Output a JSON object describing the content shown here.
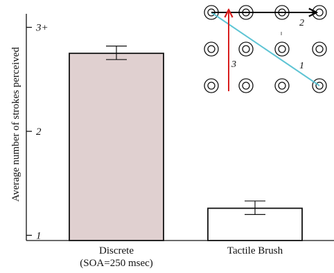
{
  "chart_data": {
    "type": "bar",
    "ylabel": "Average number of  strokes perceived",
    "categories": [
      {
        "line1": "Discrete",
        "line2": "(SOA=250 msec)"
      },
      {
        "line1": "Tactile Brush",
        "line2": ""
      }
    ],
    "values": [
      2.75,
      1.26
    ],
    "error_low": [
      2.69,
      1.2
    ],
    "error_high": [
      2.82,
      1.33
    ],
    "bar_colors": [
      "#e0d0d0",
      "#ffffff"
    ],
    "ylim": [
      0.95,
      3.13
    ],
    "yticks": [
      {
        "value": 1,
        "label": "1"
      },
      {
        "value": 2,
        "label": "2"
      },
      {
        "value": 3,
        "label": "3+"
      }
    ],
    "grid": false,
    "inset": {
      "grid_rows": 3,
      "grid_cols": 4,
      "strokes": [
        {
          "label": "1",
          "color": "#5ec4d4",
          "from": [
            0,
            0
          ],
          "to": [
            2,
            3
          ]
        },
        {
          "label": "2",
          "color": "#000000",
          "from": [
            0,
            0
          ],
          "to": [
            0,
            2.9
          ]
        },
        {
          "label": "3",
          "color": "#d81e1e",
          "from": [
            2.15,
            0.5
          ],
          "to": [
            -0.05,
            0.5
          ]
        }
      ]
    }
  }
}
